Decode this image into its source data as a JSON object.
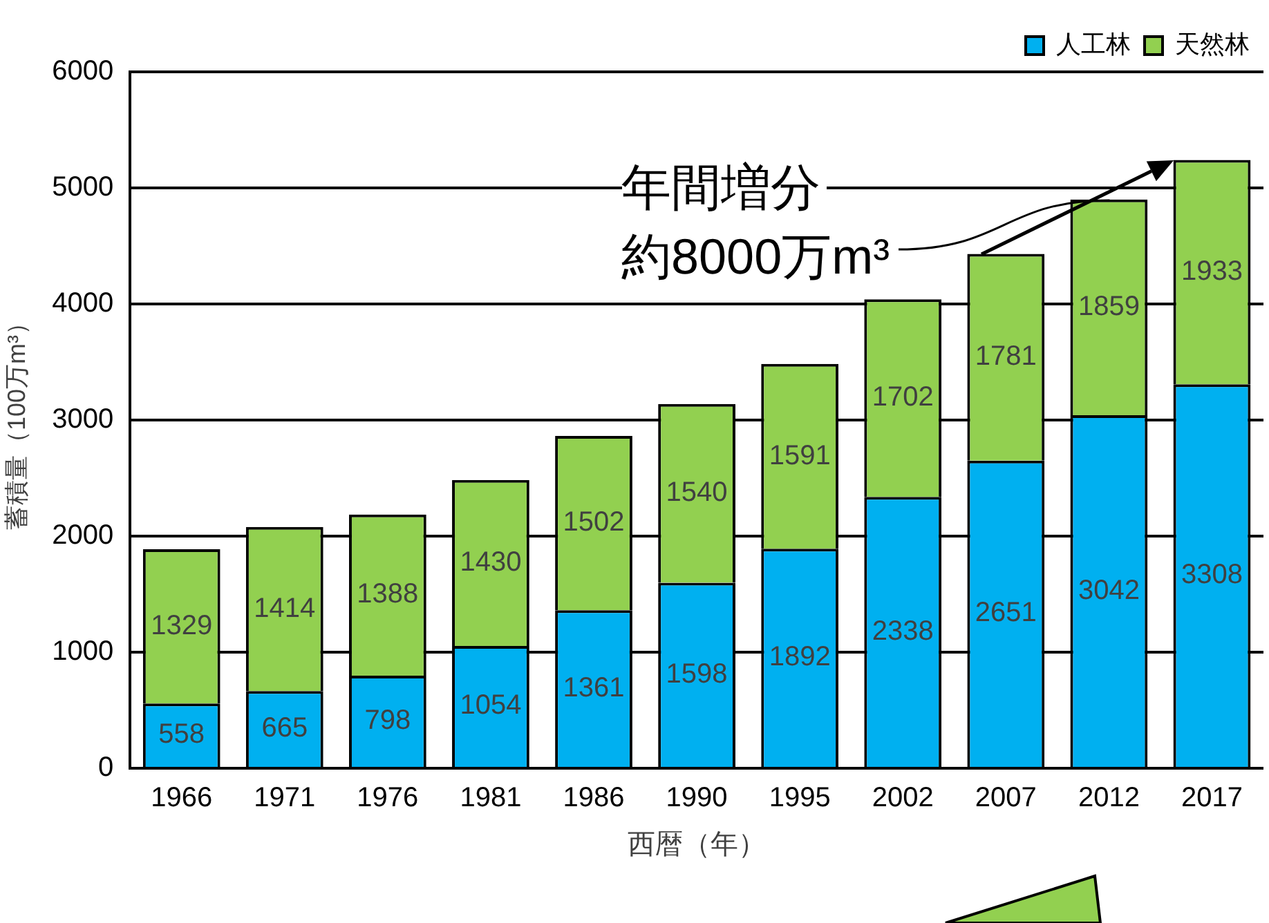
{
  "chart_data": {
    "type": "bar",
    "stacked": true,
    "xlabel": "西暦（年）",
    "ylabel": "蓄積量（100万m³）",
    "categories": [
      "1966",
      "1971",
      "1976",
      "1981",
      "1986",
      "1990",
      "1995",
      "2002",
      "2007",
      "2012",
      "2017"
    ],
    "series": [
      {
        "name": "人工林",
        "color": "#00b0f0",
        "values": [
          558,
          665,
          798,
          1054,
          1361,
          1598,
          1892,
          2338,
          2651,
          3042,
          3308
        ]
      },
      {
        "name": "天然林",
        "color": "#92d050",
        "values": [
          1329,
          1414,
          1388,
          1430,
          1502,
          1540,
          1591,
          1702,
          1781,
          1859,
          1933
        ]
      }
    ],
    "ylim": [
      0,
      6000
    ],
    "yticks": [
      0,
      1000,
      2000,
      3000,
      4000,
      5000,
      6000
    ],
    "grid": "y",
    "legend": "top right",
    "data_labels": true,
    "annotations": [
      "年間増分",
      {
        "text": "約8000万m³",
        "x": "2012",
        "y": 4890
      }
    ]
  }
}
